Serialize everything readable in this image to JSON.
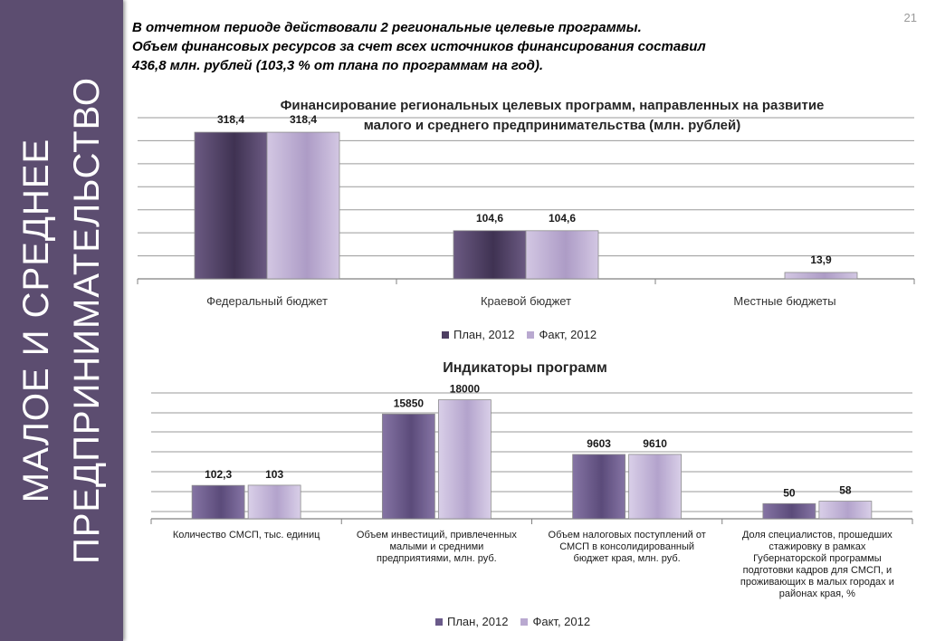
{
  "page_number": "21",
  "sidebar": {
    "lines": [
      "МАЛОЕ И СРЕДНЕЕ",
      "ПРЕДПРИНИМАТЕЛЬСТВО"
    ]
  },
  "intro": [
    "В отчетном периоде действовали 2 региональные целевые программы.",
    "Объем финансовых ресурсов за счет всех источников финансирования составил",
    "436,8 млн. рублей (103,3 % от плана по программам на год)."
  ],
  "colors": {
    "plan": "#4e3f63",
    "fact": "#b9a9d0",
    "plan2": "#6a5a8a",
    "sidebar": "#5c4d70"
  },
  "chart_data": [
    {
      "type": "bar",
      "title": "Финансирование региональных целевых программ, направленных на развитие малого и среднего предпринимательства (млн. рублей)",
      "title_lines": [
        "Финансирование региональных целевых программ, направленных на развитие",
        "малого и среднего предпринимательства (млн. рублей)"
      ],
      "categories": [
        "Федеральный бюджет",
        "Краевой бюджет",
        "Местные бюджеты"
      ],
      "series": [
        {
          "name": "План, 2012",
          "values": [
            318.4,
            104.6,
            null
          ],
          "labels": [
            "318,4",
            "104,6",
            ""
          ]
        },
        {
          "name": "Факт, 2012",
          "values": [
            318.4,
            104.6,
            13.9
          ],
          "labels": [
            "318,4",
            "104,6",
            "13,9"
          ]
        }
      ],
      "ylim": [
        0,
        350
      ],
      "grid": true,
      "legend": "bottom"
    },
    {
      "type": "bar",
      "title": "Индикаторы программ",
      "categories": [
        "Количество СМСП, тыс. единиц",
        "Объем инвестиций, привлеченных малыми и средними предприятиями, млн. руб.",
        "Объем налоговых поступлений от СМСП в консолидированный бюджет края, млн. руб.",
        "Доля специалистов, прошедших стажировку в рамках Губернаторской программы подготовки кадров для СМСП, и проживающих в малых городах и районах края, %"
      ],
      "category_lines": [
        [
          "Количество СМСП, тыс. единиц"
        ],
        [
          "Объем инвестиций, привлеченных",
          "малыми и средними",
          "предприятиями, млн. руб."
        ],
        [
          "Объем налоговых поступлений от",
          "СМСП в консолидированный",
          "бюджет края, млн. руб."
        ],
        [
          "Доля специалистов, прошедших",
          "стажировку в рамках",
          "Губернаторской программы",
          "подготовки кадров для СМСП, и",
          "проживающих в малых городах и",
          "районах края, %"
        ]
      ],
      "series": [
        {
          "name": "План, 2012",
          "values": [
            102.3,
            15850,
            9603,
            50
          ],
          "labels": [
            "102,3",
            "15850",
            "9603",
            "50"
          ]
        },
        {
          "name": "Факт, 2012",
          "values": [
            103,
            18000,
            9610,
            58
          ],
          "labels": [
            "103",
            "18000",
            "9610",
            "58"
          ]
        }
      ],
      "scale": "non-uniform",
      "grid": true,
      "legend": "bottom"
    }
  ]
}
